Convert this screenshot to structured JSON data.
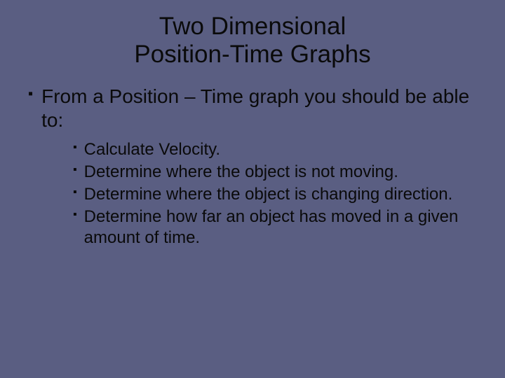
{
  "background_color": "#5a5e82",
  "text_color": "#0a0a0a",
  "title": {
    "line1": "Two Dimensional",
    "line2": "Position-Time Graphs",
    "fontsize": 35
  },
  "bullet_glyph": "▪",
  "level1": {
    "text": "From a Position – Time graph you should be able to:",
    "fontsize": 28
  },
  "level2": {
    "fontsize": 24,
    "items": [
      "Calculate Velocity.",
      "Determine where the object is not moving.",
      "Determine where the object is changing direction.",
      "Determine how far an object has moved in a given amount of time."
    ]
  }
}
